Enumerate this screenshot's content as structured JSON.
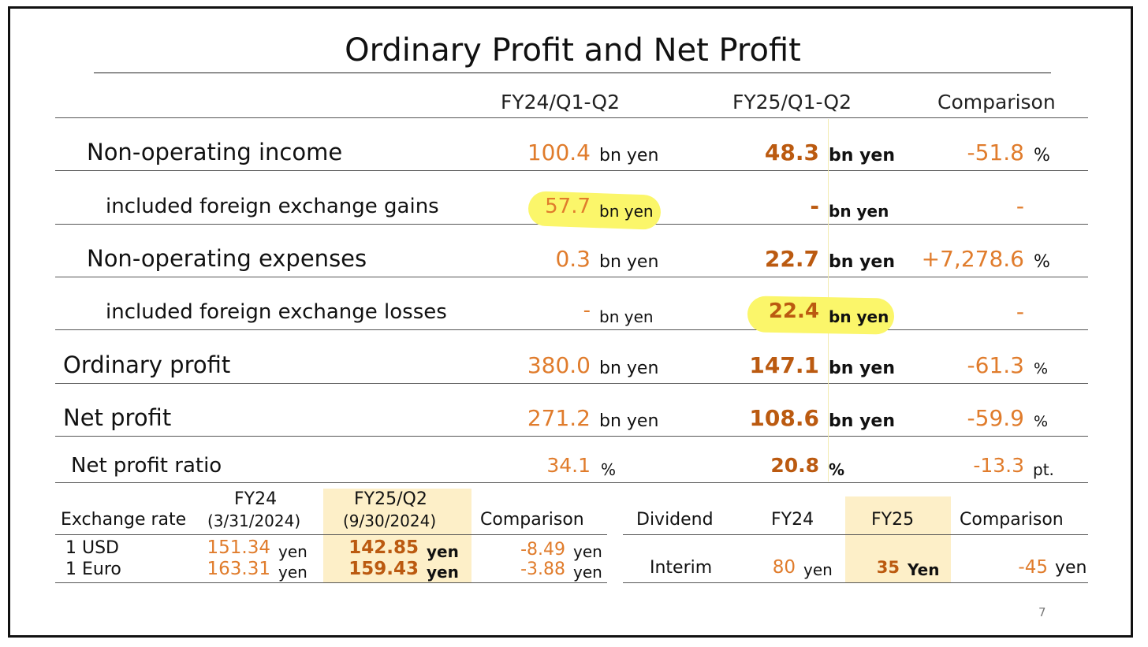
{
  "title": "Ordinary Profit and Net Profit",
  "columns": {
    "fy24": "FY24/Q1-Q2",
    "fy25": "FY25/Q1-Q2",
    "comparison": "Comparison"
  },
  "rows": [
    {
      "label": "Non-operating income",
      "fy24_value": "100.4",
      "fy24_unit": "bn yen",
      "fy25_value": "48.3",
      "fy25_unit": "bn yen",
      "comparison_value": "-51.8",
      "comparison_unit": "%"
    },
    {
      "label": "included foreign exchange gains",
      "fy24_value": "57.7",
      "fy24_unit": "bn yen",
      "fy25_value": "-",
      "fy25_unit": "bn yen",
      "comparison_value": "-",
      "comparison_unit": ""
    },
    {
      "label": "Non-operating expenses",
      "fy24_value": "0.3",
      "fy24_unit": "bn yen",
      "fy25_value": "22.7",
      "fy25_unit": "bn yen",
      "comparison_value": "+7,278.6",
      "comparison_unit": "%"
    },
    {
      "label": "included foreign exchange losses",
      "fy24_value": "-",
      "fy24_unit": "bn yen",
      "fy25_value": "22.4",
      "fy25_unit": "bn yen",
      "comparison_value": "-",
      "comparison_unit": ""
    },
    {
      "label": "Ordinary profit",
      "fy24_value": "380.0",
      "fy24_unit": "bn yen",
      "fy25_value": "147.1",
      "fy25_unit": "bn yen",
      "comparison_value": "-61.3",
      "comparison_unit": "%"
    },
    {
      "label": "Net profit",
      "fy24_value": "271.2",
      "fy24_unit": "bn yen",
      "fy25_value": "108.6",
      "fy25_unit": "bn yen",
      "comparison_value": "-59.9",
      "comparison_unit": "%"
    },
    {
      "label": "Net profit ratio",
      "fy24_value": "34.1",
      "fy24_unit": "%",
      "fy25_value": "20.8",
      "fy25_unit": "%",
      "comparison_value": "-13.3",
      "comparison_unit": "pt."
    }
  ],
  "exchange": {
    "label": "Exchange rate",
    "fy24_head": "FY24",
    "fy24_date": "(3/31/2024)",
    "fy25_head": "FY25/Q2",
    "fy25_date": "(9/30/2024)",
    "comparison": "Comparison",
    "rows": [
      {
        "label": "1 USD",
        "fy24": "151.34",
        "fy24_unit": "yen",
        "fy25": "142.85",
        "fy25_unit": "yen",
        "comp": "-8.49",
        "comp_unit": "yen"
      },
      {
        "label": "1 Euro",
        "fy24": "163.31",
        "fy24_unit": "yen",
        "fy25": "159.43",
        "fy25_unit": "yen",
        "comp": "-3.88",
        "comp_unit": "yen"
      }
    ]
  },
  "dividend": {
    "label": "Dividend",
    "fy24_head": "FY24",
    "fy25_head": "FY25",
    "comparison": "Comparison",
    "row": {
      "label": "Interim",
      "fy24": "80",
      "fy24_unit": "yen",
      "fy25": "35",
      "fy25_unit": "Yen",
      "comp": "-45",
      "comp_unit": "yen"
    }
  },
  "page_number": "7",
  "colors": {
    "value_orange": "#e07c2c",
    "value_bold": "#bb5a10",
    "highlight_yellow": "#fbf66a",
    "shade_peach": "#fdefc8"
  }
}
